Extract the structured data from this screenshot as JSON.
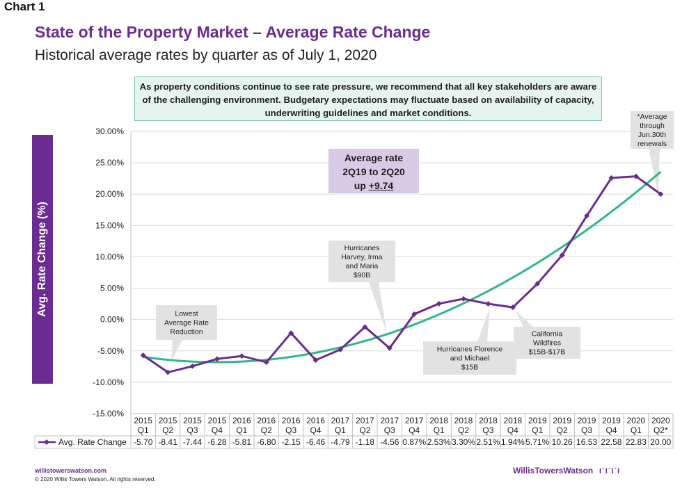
{
  "chart_label": "Chart 1",
  "chart_data": {
    "type": "line",
    "title": "State of the Property Market – Average Rate Change",
    "subtitle": "Historical average rates by quarter as of July 1, 2020",
    "ylabel": "Avg. Rate Change (%)",
    "ylim": [
      -15,
      30
    ],
    "yticks": [
      "30.00%",
      "25.00%",
      "20.00%",
      "15.00%",
      "10.00%",
      "5.00%",
      "0.00%",
      "-5.00%",
      "-10.00%",
      "-15.00%"
    ],
    "categories": [
      [
        "2015",
        "Q1"
      ],
      [
        "2015",
        "Q2"
      ],
      [
        "2015",
        "Q3"
      ],
      [
        "2015",
        "Q4"
      ],
      [
        "2016",
        "Q1"
      ],
      [
        "2016",
        "Q2"
      ],
      [
        "2016",
        "Q3"
      ],
      [
        "2016",
        "Q4"
      ],
      [
        "2017",
        "Q1"
      ],
      [
        "2017",
        "Q2"
      ],
      [
        "2017",
        "Q3"
      ],
      [
        "2017",
        "Q4"
      ],
      [
        "2018",
        "Q1"
      ],
      [
        "2018",
        "Q2"
      ],
      [
        "2018",
        "Q3"
      ],
      [
        "2018",
        "Q4"
      ],
      [
        "2019",
        "Q1"
      ],
      [
        "2019",
        "Q2"
      ],
      [
        "2019",
        "Q3"
      ],
      [
        "2019",
        "Q4"
      ],
      [
        "2020",
        "Q1"
      ],
      [
        "2020",
        "Q2*"
      ]
    ],
    "series": [
      {
        "name": "Avg. Rate Change",
        "color": "#6b2c91",
        "values": [
          -5.7,
          -8.41,
          -7.44,
          -6.28,
          -5.81,
          -6.8,
          -2.15,
          -6.46,
          -4.79,
          -1.18,
          -4.56,
          0.87,
          2.53,
          3.3,
          2.51,
          1.94,
          5.71,
          10.26,
          16.53,
          22.58,
          22.83,
          20.0
        ],
        "labels": [
          "-5.70",
          "-8.41",
          "-7.44",
          "-6.28",
          "-5.81",
          "-6.80",
          "-2.15",
          "-6.46",
          "-4.79",
          "-1.18",
          "-4.56",
          "0.87%",
          "2.53%",
          "3.30%",
          "2.51%",
          "1.94%",
          "5.71%",
          "10.26",
          "16.53",
          "22.58",
          "22.83",
          "20.00"
        ]
      }
    ],
    "trendline": {
      "type": "polynomial",
      "color": "#2fb886"
    },
    "grid": "horizontal",
    "data_table": true
  },
  "note": "As property conditions continue to see rate pressure, we recommend that all key stakeholders are aware of the challenging environment. Budgetary expectations may fluctuate based on availability of capacity, underwriting guidelines and market conditions.",
  "avg_box": {
    "line1": "Average rate",
    "line2": "2Q19 to 2Q20",
    "line3_prefix": "up ",
    "line3_value": "+9.74"
  },
  "callouts": {
    "lowest": [
      "Lowest",
      "Average Rate",
      "Reduction"
    ],
    "hurricanes_hi": [
      "Hurricanes",
      "Harvey, Irma",
      "and Maria",
      "$90B"
    ],
    "hurricanes_fm": [
      "Hurricanes Florence",
      "and Michael",
      "$15B"
    ],
    "california": [
      "California",
      "Wildfires",
      "$15B-$17B"
    ],
    "average_through": [
      "*Average",
      "through",
      "Jun.30th",
      "renewals"
    ]
  },
  "footer": {
    "url": "willistowerswatson.com",
    "copyright": "© 2020 Willis Towers Watson. All rights reserved.",
    "logo": "WillisTowersWatson",
    "logo_mark": "I´I´I´I"
  },
  "colors": {
    "brand_purple": "#6b2c91",
    "trend_green": "#2fb886",
    "note_bg": "#e6f4ef",
    "callout_bg": "#e2e2e2"
  }
}
